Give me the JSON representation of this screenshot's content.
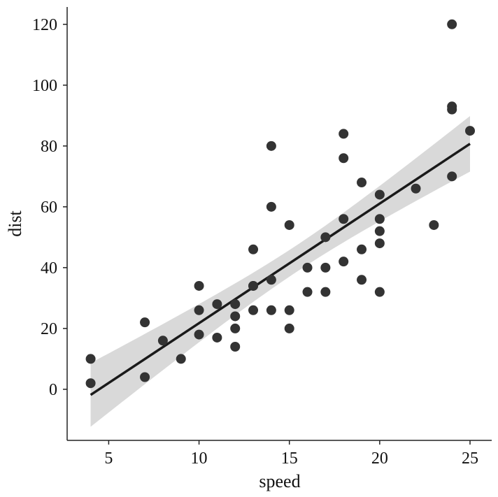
{
  "chart_data": {
    "type": "scatter",
    "title": "",
    "xlabel": "speed",
    "ylabel": "dist",
    "xlim": [
      2.7,
      26.2
    ],
    "ylim": [
      -16.8,
      125.7
    ],
    "xticks": [
      5,
      10,
      15,
      20,
      25
    ],
    "yticks": [
      0,
      20,
      40,
      60,
      80,
      100,
      120
    ],
    "xtick_labels": [
      "5",
      "10",
      "15",
      "20",
      "25"
    ],
    "ytick_labels": [
      "0",
      "20",
      "40",
      "60",
      "80",
      "100",
      "120"
    ],
    "grid": false,
    "x": [
      4,
      4,
      7,
      7,
      8,
      9,
      10,
      10,
      10,
      11,
      11,
      12,
      12,
      12,
      12,
      13,
      13,
      13,
      13,
      14,
      14,
      14,
      14,
      15,
      15,
      15,
      16,
      16,
      17,
      17,
      17,
      18,
      18,
      18,
      18,
      19,
      19,
      19,
      20,
      20,
      20,
      20,
      20,
      22,
      23,
      24,
      24,
      24,
      24,
      25
    ],
    "y": [
      2,
      10,
      4,
      22,
      16,
      10,
      18,
      26,
      34,
      17,
      28,
      14,
      20,
      24,
      28,
      26,
      34,
      34,
      46,
      26,
      36,
      60,
      80,
      20,
      26,
      54,
      32,
      40,
      32,
      40,
      50,
      42,
      56,
      76,
      84,
      36,
      46,
      68,
      32,
      48,
      52,
      56,
      64,
      66,
      54,
      70,
      92,
      93,
      120,
      85
    ],
    "fit": {
      "type": "linear",
      "intercept": -17.579,
      "slope": 3.932,
      "confidence": 0.95
    },
    "colors": {
      "points": "#333333",
      "line": "#1a1a1a",
      "band": "#d9d9d9",
      "axis": "#222222"
    }
  }
}
